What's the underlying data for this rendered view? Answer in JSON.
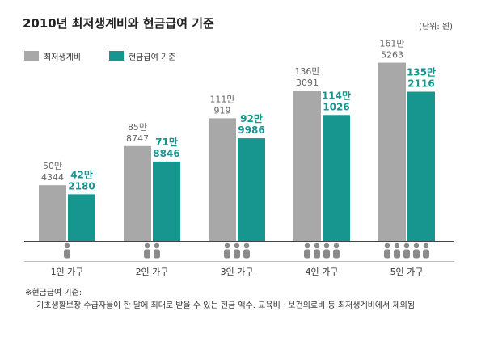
{
  "title": "2010년 최저생계비와 현금급여 기준",
  "unit_label": "(단위: 원)",
  "footnote": {
    "heading": "※현금급여 기준:",
    "text": "기초생활보장 수급자들이 한 달에 최대로 받을 수 있는 현금 액수. 교육비 · 보건의료비 등 최저생계비에서 제외됨"
  },
  "colors": {
    "min_cost": "#a8a8a8",
    "cash": "#17968f",
    "label_gray": "#666666",
    "icon": "#8a8a8a"
  },
  "icons": {
    "household_member": "person-icon"
  },
  "chart_data": {
    "type": "bar",
    "title": "2010년 최저생계비와 현금급여 기준",
    "xlabel": "",
    "ylabel": "",
    "unit": "(단위: 원)",
    "categories": [
      "1인 가구",
      "2인 가구",
      "3인 가구",
      "4인 가구",
      "5인 가구"
    ],
    "household_size": [
      1,
      2,
      3,
      4,
      5
    ],
    "legend_position": "top-left",
    "grid": false,
    "ylim": [
      0,
      1700000
    ],
    "series": [
      {
        "name": "최저생계비",
        "values": [
          504344,
          858747,
          1110919,
          1363091,
          1615263
        ],
        "labels_top": [
          "50만",
          "85만",
          "111만",
          "136만",
          "161만"
        ],
        "labels_bottom": [
          "4344",
          "8747",
          "919",
          "3091",
          "5263"
        ]
      },
      {
        "name": "현금급여 기준",
        "values": [
          422180,
          718846,
          929986,
          1141026,
          1352116
        ],
        "labels_top": [
          "42만",
          "71만",
          "92만",
          "114만",
          "135만"
        ],
        "labels_bottom": [
          "2180",
          "8846",
          "9986",
          "1026",
          "2116"
        ]
      }
    ]
  }
}
